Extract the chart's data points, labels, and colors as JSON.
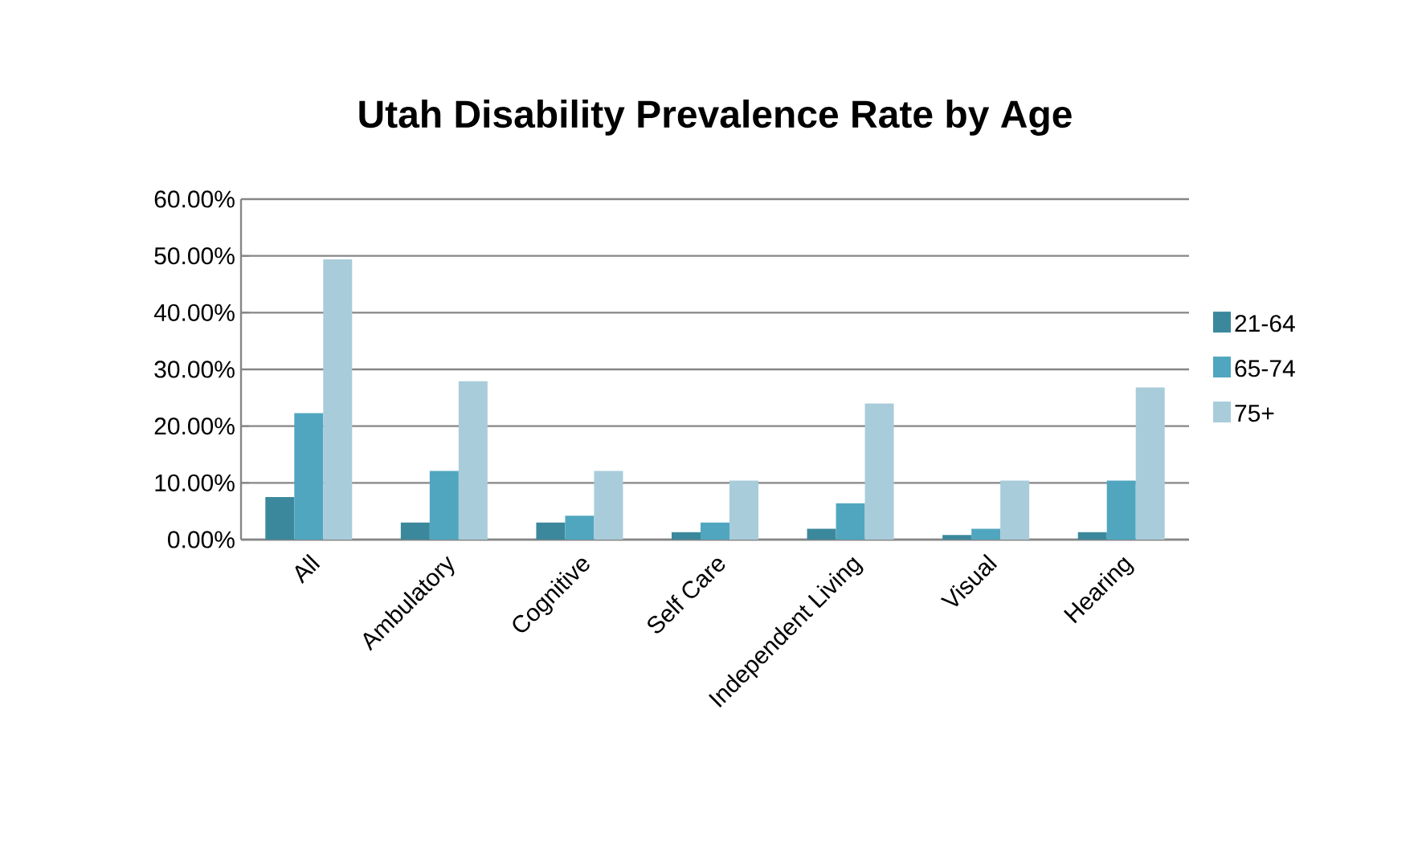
{
  "chart_data": {
    "type": "bar",
    "title": "Utah Disability Prevalence Rate by Age",
    "categories": [
      "All",
      "Ambulatory",
      "Cognitive",
      "Self Care",
      "Independent Living",
      "Visual",
      "Hearing"
    ],
    "series": [
      {
        "name": "21-64",
        "color": "#3b889c",
        "values": [
          7.5,
          3.0,
          3.0,
          1.3,
          1.9,
          0.8,
          1.3
        ]
      },
      {
        "name": "65-74",
        "color": "#50a6bf",
        "values": [
          22.3,
          12.1,
          4.2,
          3.0,
          6.4,
          1.9,
          10.4
        ]
      },
      {
        "name": "75+",
        "color": "#a8ccda",
        "values": [
          49.4,
          27.9,
          12.1,
          10.4,
          24.0,
          10.4,
          26.8
        ]
      }
    ],
    "ylim": [
      0,
      60
    ],
    "yticks": [
      {
        "value": 0,
        "label": "0.00%"
      },
      {
        "value": 10,
        "label": "10.00%"
      },
      {
        "value": 20,
        "label": "20.00%"
      },
      {
        "value": 30,
        "label": "30.00%"
      },
      {
        "value": 40,
        "label": "40.00%"
      },
      {
        "value": 50,
        "label": "50.00%"
      },
      {
        "value": 60,
        "label": "60.00%"
      }
    ],
    "grid": "y",
    "legend": "right"
  }
}
